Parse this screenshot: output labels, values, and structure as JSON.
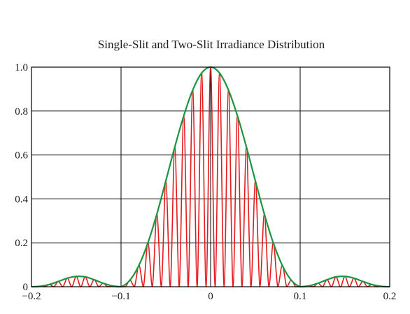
{
  "chart_data": {
    "type": "line",
    "title": "Single-Slit and Two-Slit Irradiance Distribution",
    "xlabel": "",
    "ylabel": "",
    "xlim": [
      -0.2,
      0.2
    ],
    "ylim": [
      0,
      1.0
    ],
    "grid": true,
    "xticks": [
      -0.2,
      -0.1,
      0,
      0.1,
      0.2
    ],
    "xtick_labels": [
      "−0.2",
      "−0.1",
      "0",
      "0.1",
      "0.2"
    ],
    "yticks": [
      0,
      0.2,
      0.4,
      0.6,
      0.8,
      1.0
    ],
    "ytick_labels": [
      "0",
      "0.2",
      "0.4",
      "0.6",
      "0.8",
      "1.0"
    ],
    "series": [
      {
        "color": "#1a9641",
        "x": [
          -0.2,
          -0.19,
          -0.18,
          -0.17,
          -0.16,
          -0.15,
          -0.14,
          -0.13,
          -0.12,
          -0.11,
          -0.1,
          -0.09,
          -0.08,
          -0.07,
          -0.06,
          -0.05,
          -0.04,
          -0.03,
          -0.02,
          -0.01,
          0,
          0.01,
          0.02,
          0.03,
          0.04,
          0.05,
          0.06,
          0.07,
          0.08,
          0.09,
          0.1,
          0.11,
          0.12,
          0.13,
          0.14,
          0.15,
          0.16,
          0.17,
          0.18,
          0.19,
          0.2
        ],
        "y": [
          0.0,
          0.002,
          0.01,
          0.024,
          0.039,
          0.047,
          0.045,
          0.032,
          0.016,
          0.004,
          0.0,
          0.03,
          0.098,
          0.2,
          0.331,
          0.482,
          0.636,
          0.778,
          0.895,
          0.973,
          1.0,
          0.973,
          0.895,
          0.778,
          0.636,
          0.482,
          0.331,
          0.2,
          0.098,
          0.03,
          0.0,
          0.004,
          0.016,
          0.032,
          0.045,
          0.047,
          0.039,
          0.024,
          0.01,
          0.002,
          0.0
        ]
      },
      {
        "color": "#e41a1c",
        "x": [
          -0.2,
          -0.195,
          -0.19,
          -0.185,
          -0.18,
          -0.175,
          -0.17,
          -0.165,
          -0.16,
          -0.155,
          -0.15,
          -0.145,
          -0.14,
          -0.135,
          -0.13,
          -0.125,
          -0.12,
          -0.115,
          -0.11,
          -0.105,
          -0.1,
          -0.095,
          -0.09,
          -0.085,
          -0.08,
          -0.075,
          -0.07,
          -0.065,
          -0.06,
          -0.055,
          -0.05,
          -0.045,
          -0.04,
          -0.035,
          -0.03,
          -0.025,
          -0.02,
          -0.015,
          -0.01,
          -0.005,
          0,
          0.005,
          0.01,
          0.015,
          0.02,
          0.025,
          0.03,
          0.035,
          0.04,
          0.045,
          0.05,
          0.055,
          0.06,
          0.065,
          0.07,
          0.075,
          0.08,
          0.085,
          0.09,
          0.095,
          0.1,
          0.105,
          0.11,
          0.115,
          0.12,
          0.125,
          0.13,
          0.135,
          0.14,
          0.145,
          0.15,
          0.155,
          0.16,
          0.165,
          0.17,
          0.175,
          0.18,
          0.185,
          0.19,
          0.195,
          0.2
        ],
        "y": [
          0.0,
          0.0,
          0.002,
          0.0,
          0.01,
          0.0,
          0.024,
          0.0,
          0.039,
          0.0,
          0.047,
          0.0,
          0.045,
          0.0,
          0.032,
          0.0,
          0.016,
          0.0,
          0.004,
          0.0,
          0.0,
          0.0,
          0.03,
          0.0,
          0.098,
          0.0,
          0.2,
          0.0,
          0.331,
          0.0,
          0.482,
          0.0,
          0.636,
          0.0,
          0.778,
          0.0,
          0.895,
          0.0,
          0.973,
          0.0,
          1.0,
          0.0,
          0.973,
          0.0,
          0.895,
          0.0,
          0.778,
          0.0,
          0.636,
          0.0,
          0.482,
          0.0,
          0.331,
          0.0,
          0.2,
          0.0,
          0.098,
          0.0,
          0.03,
          0.0,
          0.0,
          0.0,
          0.004,
          0.0,
          0.016,
          0.0,
          0.032,
          0.0,
          0.045,
          0.0,
          0.047,
          0.0,
          0.039,
          0.0,
          0.024,
          0.0,
          0.01,
          0.0,
          0.002,
          0.0,
          0.0
        ]
      }
    ]
  }
}
